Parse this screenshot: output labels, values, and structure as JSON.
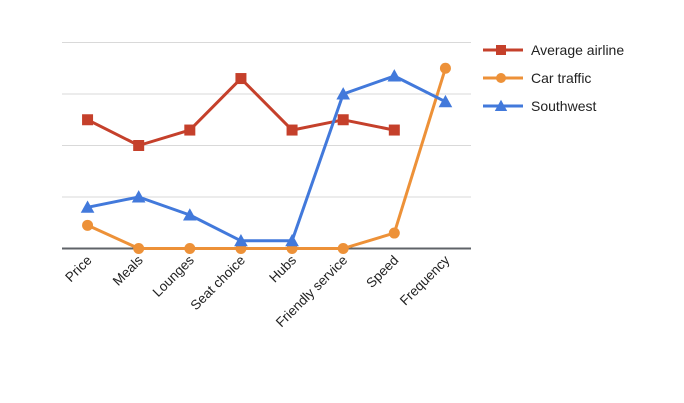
{
  "chart": {
    "background": "#ffffff",
    "grid_color": "#d9d9d9",
    "axis_color": "#5f6368",
    "label_color": "#222222",
    "legend_text_color": "#222222"
  },
  "chart_data": {
    "type": "line",
    "title": "",
    "xlabel": "",
    "ylabel": "",
    "categories": [
      "Price",
      "Meals",
      "Lounges",
      "Seat choice",
      "Hubs",
      "Friendly service",
      "Speed",
      "Frequency"
    ],
    "series": [
      {
        "name": "Average airline",
        "color": "#c5402b",
        "marker": "square",
        "values": [
          2.5,
          2,
          2.3,
          3.3,
          2.3,
          2.5,
          2.3,
          null
        ]
      },
      {
        "name": "Car traffic",
        "color": "#ed9138",
        "marker": "circle",
        "values": [
          0.45,
          0,
          0,
          0,
          0,
          0,
          0.3,
          3.5
        ]
      },
      {
        "name": "Southwest",
        "color": "#4279db",
        "marker": "triangle",
        "values": [
          0.8,
          1,
          0.65,
          0.15,
          0.15,
          3,
          3.35,
          2.85
        ]
      }
    ],
    "ylim": [
      0,
      4
    ],
    "y_gridline_step": 1,
    "y_tick_labels_visible": false,
    "grid": "on",
    "legend_position": "top-right",
    "x_label_rotation_deg": 45
  }
}
